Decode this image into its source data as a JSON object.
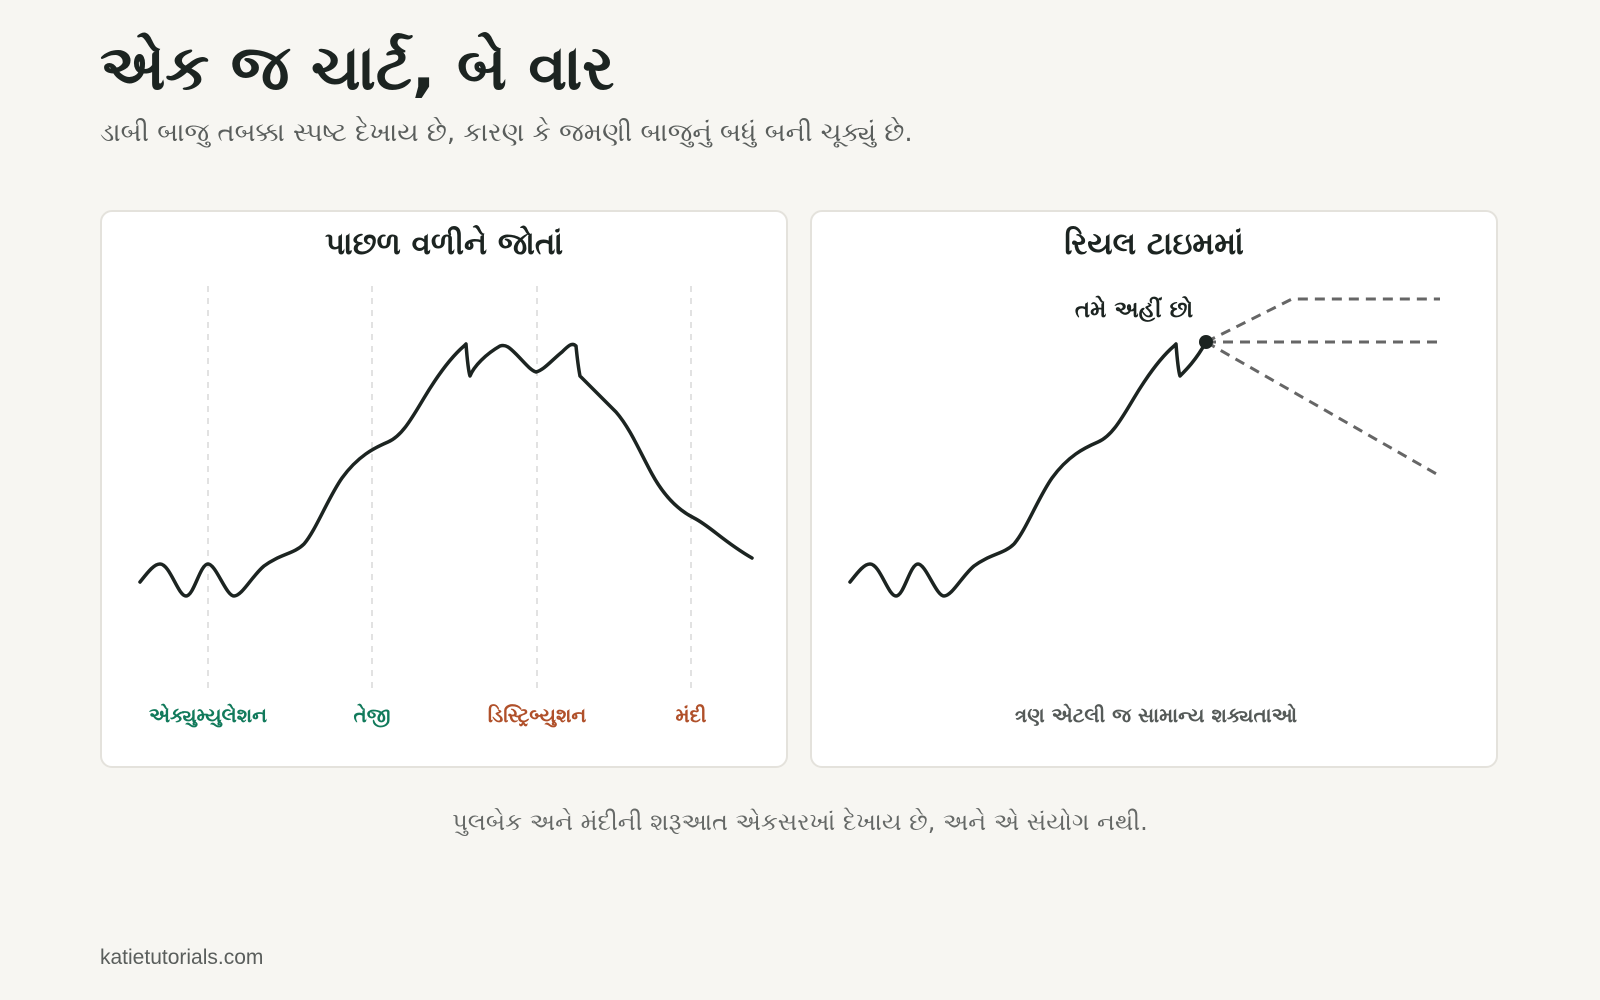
{
  "header": {
    "title": "એક જ ચાર્ટ, બે વાર",
    "subtitle": "ડાબી બાજુ તબક્કા સ્પષ્ટ દેખાય છે, કારણ કે જમણી બાજુનું બધું બની ચૂક્યું છે."
  },
  "left_panel": {
    "title": "પાછળ વળીને જોતાં",
    "phases": [
      {
        "label": "એક્યુમ્યુલેશન",
        "color": "#117a5b"
      },
      {
        "label": "તેજી",
        "color": "#117a5b"
      },
      {
        "label": "ડિસ્ટ્રિબ્યુશન",
        "color": "#b0502a"
      },
      {
        "label": "મંદી",
        "color": "#b0502a"
      }
    ]
  },
  "right_panel": {
    "title": "રિયલ ટાઇમમાં",
    "marker_label": "તમે અહીં છો",
    "caption": "ત્રણ એટલી જ સામાન્ય શક્યતાઓ"
  },
  "footer": {
    "note": "પુલબેક અને મંદીની શરૂઆત એકસરખાં દેખાય છે, અને એ સંયોગ નથી.",
    "credit": "katietutorials.com"
  },
  "colors": {
    "background": "#f7f6f2",
    "line": "#1c2421",
    "scenario": "#666666",
    "green": "#117a5b",
    "rust": "#b0502a"
  }
}
